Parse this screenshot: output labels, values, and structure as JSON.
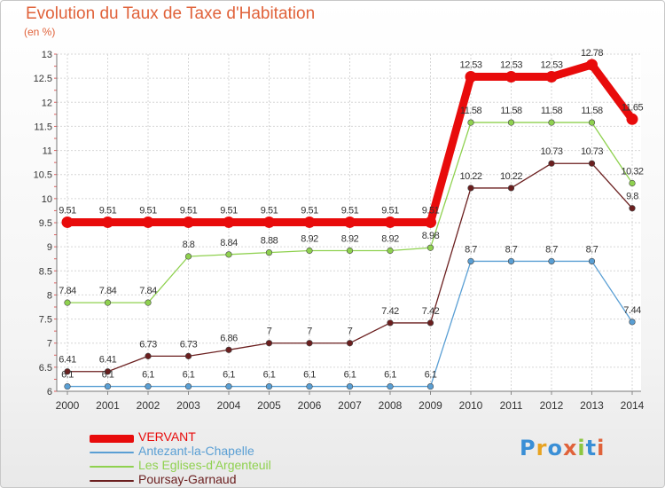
{
  "title": "Evolution du Taux de Taxe d'Habitation",
  "subtitle": "(en %)",
  "logo": {
    "text": "Proxiti",
    "letter_colors": [
      "#3a8fd6",
      "#e8a321",
      "#3a8fd6",
      "#e0623a",
      "#8cc63f",
      "#3a8fd6",
      "#e0623a"
    ]
  },
  "chart_data": {
    "type": "line",
    "x": [
      2000,
      2001,
      2002,
      2003,
      2004,
      2005,
      2006,
      2007,
      2008,
      2009,
      2010,
      2011,
      2012,
      2013,
      2014
    ],
    "ylim": [
      6,
      13
    ],
    "yticks": [
      6,
      6.5,
      7,
      7.5,
      8,
      8.5,
      9,
      9.5,
      10,
      10.5,
      11,
      11.5,
      12,
      12.5,
      13
    ],
    "grid": true,
    "legend_position": "bottom-left",
    "series": [
      {
        "name": "VERVANT",
        "color": "#e80b0b",
        "values": [
          9.51,
          9.51,
          9.51,
          9.51,
          9.51,
          9.51,
          9.51,
          9.51,
          9.51,
          9.51,
          12.53,
          12.53,
          12.53,
          12.78,
          11.65
        ]
      },
      {
        "name": "Antezant-la-Chapelle",
        "color": "#5a9fd4",
        "values": [
          6.1,
          6.1,
          6.1,
          6.1,
          6.1,
          6.1,
          6.1,
          6.1,
          6.1,
          6.1,
          8.7,
          8.7,
          8.7,
          8.7,
          7.44
        ]
      },
      {
        "name": "Les Eglises-d'Argenteuil",
        "color": "#8fd14f",
        "values": [
          7.84,
          7.84,
          7.84,
          8.8,
          8.84,
          8.88,
          8.92,
          8.92,
          8.92,
          8.98,
          11.58,
          11.58,
          11.58,
          11.58,
          10.32
        ]
      },
      {
        "name": "Poursay-Garnaud",
        "color": "#6b1f1f",
        "values": [
          6.41,
          6.41,
          6.73,
          6.73,
          6.86,
          7,
          7,
          7,
          7.42,
          7.42,
          10.22,
          10.22,
          10.73,
          10.73,
          9.8
        ]
      }
    ]
  }
}
